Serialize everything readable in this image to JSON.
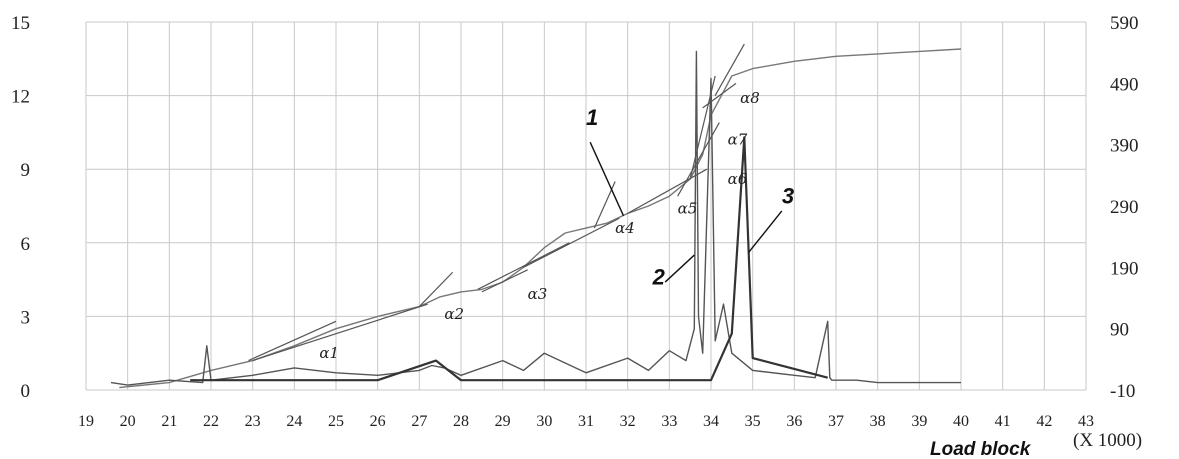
{
  "chart_data": {
    "type": "line",
    "xlabel": "Load block",
    "xunit": "(X 1000)",
    "x_ticks": [
      "19",
      "20",
      "21",
      "22",
      "23",
      "24",
      "25",
      "26",
      "27",
      "28",
      "29",
      "30",
      "31",
      "32",
      "33",
      "34",
      "35",
      "36",
      "37",
      "38",
      "39",
      "40",
      "41",
      "42",
      "43"
    ],
    "y_left_ticks": [
      "15",
      "12",
      "9",
      "6",
      "3",
      "0"
    ],
    "y_right_ticks": [
      "590",
      "490",
      "390",
      "290",
      "190",
      "90",
      "-10"
    ],
    "xlim": [
      19,
      43
    ],
    "ylim_left": [
      0,
      15
    ],
    "ylim_right": [
      -10,
      590
    ],
    "grid": true,
    "series": [
      {
        "name": "1",
        "axis": "left",
        "color": "#777777",
        "x": [
          19.8,
          21.0,
          22.0,
          23.0,
          24.0,
          25.0,
          26.0,
          27.0,
          27.5,
          28.0,
          28.5,
          29.0,
          29.5,
          30.0,
          30.5,
          31.0,
          31.5,
          32.0,
          32.5,
          33.0,
          33.5,
          33.8,
          34.0,
          34.5,
          35.0,
          36.0,
          37.0,
          38.0,
          39.0,
          40.0
        ],
        "values": [
          0.1,
          0.3,
          0.8,
          1.2,
          1.8,
          2.5,
          3.0,
          3.4,
          3.8,
          4.0,
          4.1,
          4.4,
          5.0,
          5.8,
          6.4,
          6.6,
          6.8,
          7.2,
          7.5,
          7.9,
          8.6,
          9.6,
          11.2,
          12.8,
          13.1,
          13.4,
          13.6,
          13.7,
          13.8,
          13.9
        ]
      },
      {
        "name": "2",
        "axis": "left",
        "color": "#555555",
        "x": [
          19.6,
          20.0,
          21.0,
          21.8,
          21.9,
          22.0,
          23.0,
          24.0,
          25.0,
          26.0,
          27.0,
          27.3,
          27.6,
          28.0,
          29.0,
          29.5,
          30.0,
          31.0,
          32.0,
          32.5,
          33.0,
          33.4,
          33.6,
          33.65,
          33.7,
          33.8,
          34.0,
          34.1,
          34.3,
          34.5,
          35.0,
          36.0,
          36.5,
          36.8,
          36.85,
          36.9,
          37.5,
          38.0,
          39.0,
          40.0
        ],
        "values": [
          0.3,
          0.2,
          0.4,
          0.3,
          1.8,
          0.4,
          0.6,
          0.9,
          0.7,
          0.6,
          0.8,
          1.0,
          0.9,
          0.6,
          1.2,
          0.8,
          1.5,
          0.7,
          1.3,
          0.8,
          1.6,
          1.2,
          2.5,
          13.8,
          3.0,
          1.5,
          12.7,
          2.0,
          3.5,
          1.5,
          0.8,
          0.6,
          0.5,
          2.8,
          0.5,
          0.4,
          0.4,
          0.3,
          0.3,
          0.3
        ]
      },
      {
        "name": "3",
        "axis": "left",
        "color": "#333333",
        "x": [
          21.5,
          26.0,
          27.4,
          28.0,
          29.0,
          33.0,
          34.0,
          34.5,
          34.8,
          35.0,
          36.8
        ],
        "values": [
          0.4,
          0.4,
          1.2,
          0.4,
          0.4,
          0.4,
          0.4,
          2.3,
          10.3,
          1.3,
          0.5
        ]
      }
    ],
    "annotations": [
      {
        "label": "1",
        "target_series": "1"
      },
      {
        "label": "2",
        "target_series": "2"
      },
      {
        "label": "3",
        "target_series": "3"
      }
    ],
    "angle_labels": [
      "α1",
      "α2",
      "α3",
      "α4",
      "α5",
      "α6",
      "α7",
      "α8"
    ]
  }
}
